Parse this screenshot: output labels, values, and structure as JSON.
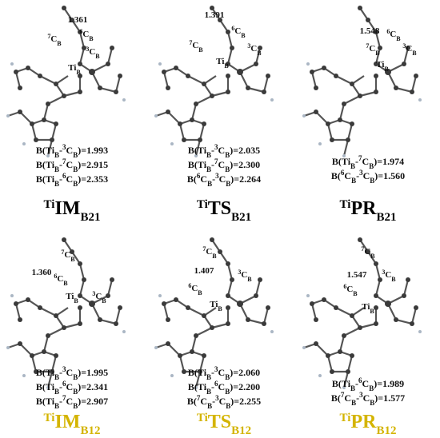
{
  "panels": [
    {
      "label": [
        [
          "Ti",
          "sup"
        ],
        [
          "IM"
        ],
        [
          "B21",
          "sub"
        ]
      ],
      "label_color": "#000000",
      "atoms": [
        [
          [
            "1.361"
          ]
        ],
        [
          [
            "7",
            "sup"
          ],
          [
            "C"
          ],
          [
            "B",
            "sub"
          ]
        ],
        [
          [
            "6",
            "sup"
          ],
          [
            "C"
          ],
          [
            "B",
            "sub"
          ]
        ],
        [
          [
            "3",
            "sup"
          ],
          [
            "C"
          ],
          [
            "B",
            "sub"
          ]
        ],
        [
          [
            "Ti"
          ],
          [
            "B",
            "sub"
          ]
        ]
      ],
      "bonds": [
        [
          [
            "B(Ti"
          ],
          [
            "B",
            "sub"
          ],
          [
            "-"
          ],
          [
            "3",
            "sup"
          ],
          [
            "C"
          ],
          [
            "B",
            "sub"
          ],
          [
            ")=1.993"
          ]
        ],
        [
          [
            "B(Ti"
          ],
          [
            "B",
            "sub"
          ],
          [
            "-"
          ],
          [
            "7",
            "sup"
          ],
          [
            "C"
          ],
          [
            "B",
            "sub"
          ],
          [
            ")=2.915"
          ]
        ],
        [
          [
            "B(Ti"
          ],
          [
            "B",
            "sub"
          ],
          [
            "-"
          ],
          [
            "6",
            "sup"
          ],
          [
            "C"
          ],
          [
            "B",
            "sub"
          ],
          [
            ")=2.353"
          ]
        ]
      ]
    },
    {
      "label": [
        [
          "Ti",
          "sup"
        ],
        [
          "TS"
        ],
        [
          "B21",
          "sub"
        ]
      ],
      "label_color": "#000000",
      "atoms": [
        [
          [
            "1.391"
          ]
        ],
        [
          [
            "6",
            "sup"
          ],
          [
            "C"
          ],
          [
            "B",
            "sub"
          ]
        ],
        [
          [
            "7",
            "sup"
          ],
          [
            "C"
          ],
          [
            "B",
            "sub"
          ]
        ],
        [
          [
            "3",
            "sup"
          ],
          [
            "C"
          ],
          [
            "B",
            "sub"
          ]
        ],
        [
          [
            "Ti"
          ],
          [
            "B",
            "sub"
          ]
        ]
      ],
      "bonds": [
        [
          [
            "B(Ti"
          ],
          [
            "B",
            "sub"
          ],
          [
            "-"
          ],
          [
            "3",
            "sup"
          ],
          [
            "C"
          ],
          [
            "B",
            "sub"
          ],
          [
            ")=2.035"
          ]
        ],
        [
          [
            "B(Ti"
          ],
          [
            "B",
            "sub"
          ],
          [
            "-"
          ],
          [
            "7",
            "sup"
          ],
          [
            "C"
          ],
          [
            "B",
            "sub"
          ],
          [
            ")=2.300"
          ]
        ],
        [
          [
            "B("
          ],
          [
            "6",
            "sup"
          ],
          [
            "C"
          ],
          [
            "B",
            "sub"
          ],
          [
            "-"
          ],
          [
            "3",
            "sup"
          ],
          [
            "C"
          ],
          [
            "B",
            "sub"
          ],
          [
            ")=2.264"
          ]
        ]
      ]
    },
    {
      "label": [
        [
          "Ti",
          "sup"
        ],
        [
          "PR"
        ],
        [
          "B21",
          "sub"
        ]
      ],
      "label_color": "#000000",
      "atoms": [
        [
          [
            "1.548"
          ]
        ],
        [
          [
            "6",
            "sup"
          ],
          [
            "C"
          ],
          [
            "B",
            "sub"
          ]
        ],
        [
          [
            "3",
            "sup"
          ],
          [
            "C"
          ],
          [
            "B",
            "sub"
          ]
        ],
        [
          [
            "7",
            "sup"
          ],
          [
            "C"
          ],
          [
            "B",
            "sub"
          ]
        ],
        [
          [
            "Ti"
          ],
          [
            "B",
            "sub"
          ]
        ]
      ],
      "bonds": [
        [
          [
            "B(Ti"
          ],
          [
            "B",
            "sub"
          ],
          [
            "-"
          ],
          [
            "7",
            "sup"
          ],
          [
            "C"
          ],
          [
            "B",
            "sub"
          ],
          [
            ")=1.974"
          ]
        ],
        [
          [
            "B("
          ],
          [
            "6",
            "sup"
          ],
          [
            "C"
          ],
          [
            "B",
            "sub"
          ],
          [
            "-"
          ],
          [
            "3",
            "sup"
          ],
          [
            "C"
          ],
          [
            "B",
            "sub"
          ],
          [
            ")=1.560"
          ]
        ]
      ]
    },
    {
      "label": [
        [
          "Ti",
          "sup"
        ],
        [
          "IM"
        ],
        [
          "B12",
          "sub"
        ]
      ],
      "label_color": "#d4b400",
      "atoms": [
        [
          [
            "1.360"
          ]
        ],
        [
          [
            "7",
            "sup"
          ],
          [
            "C"
          ],
          [
            "B",
            "sub"
          ]
        ],
        [
          [
            "6",
            "sup"
          ],
          [
            "C"
          ],
          [
            "B",
            "sub"
          ]
        ],
        [
          [
            "3",
            "sup"
          ],
          [
            "C"
          ],
          [
            "B",
            "sub"
          ]
        ],
        [
          [
            "Ti"
          ],
          [
            "B",
            "sub"
          ]
        ]
      ],
      "bonds": [
        [
          [
            "B(Ti"
          ],
          [
            "B",
            "sub"
          ],
          [
            "-"
          ],
          [
            "3",
            "sup"
          ],
          [
            "C"
          ],
          [
            "B",
            "sub"
          ],
          [
            ")=1.995"
          ]
        ],
        [
          [
            "B(Ti"
          ],
          [
            "B",
            "sub"
          ],
          [
            "-"
          ],
          [
            "6",
            "sup"
          ],
          [
            "C"
          ],
          [
            "B",
            "sub"
          ],
          [
            ")=2.341"
          ]
        ],
        [
          [
            "B(Ti"
          ],
          [
            "B",
            "sub"
          ],
          [
            "-"
          ],
          [
            "7",
            "sup"
          ],
          [
            "C"
          ],
          [
            "B",
            "sub"
          ],
          [
            ")=2.907"
          ]
        ]
      ]
    },
    {
      "label": [
        [
          "Ti",
          "sup"
        ],
        [
          "TS"
        ],
        [
          "B12",
          "sub"
        ]
      ],
      "label_color": "#d4b400",
      "atoms": [
        [
          [
            "7",
            "sup"
          ],
          [
            "C"
          ],
          [
            "B",
            "sub"
          ]
        ],
        [
          [
            "1.407"
          ]
        ],
        [
          [
            "3",
            "sup"
          ],
          [
            "C"
          ],
          [
            "B",
            "sub"
          ]
        ],
        [
          [
            "6",
            "sup"
          ],
          [
            "C"
          ],
          [
            "B",
            "sub"
          ]
        ],
        [
          [
            "Ti"
          ],
          [
            "B",
            "sub"
          ]
        ]
      ],
      "bonds": [
        [
          [
            "B(Ti"
          ],
          [
            "B",
            "sub"
          ],
          [
            "-"
          ],
          [
            "3",
            "sup"
          ],
          [
            "C"
          ],
          [
            "B",
            "sub"
          ],
          [
            ")=2.060"
          ]
        ],
        [
          [
            "B(Ti"
          ],
          [
            "B",
            "sub"
          ],
          [
            "-"
          ],
          [
            "6",
            "sup"
          ],
          [
            "C"
          ],
          [
            "B",
            "sub"
          ],
          [
            ")=2.200"
          ]
        ],
        [
          [
            "B("
          ],
          [
            "7",
            "sup"
          ],
          [
            "C"
          ],
          [
            "B",
            "sub"
          ],
          [
            "-"
          ],
          [
            "3",
            "sup"
          ],
          [
            "C"
          ],
          [
            "B",
            "sub"
          ],
          [
            ")=2.255"
          ]
        ]
      ]
    },
    {
      "label": [
        [
          "Ti",
          "sup"
        ],
        [
          "PR"
        ],
        [
          "B12",
          "sub"
        ]
      ],
      "label_color": "#d4b400",
      "atoms": [
        [
          [
            "7",
            "sup"
          ],
          [
            "C"
          ],
          [
            "B",
            "sub"
          ]
        ],
        [
          [
            "1.547"
          ]
        ],
        [
          [
            "3",
            "sup"
          ],
          [
            "C"
          ],
          [
            "B",
            "sub"
          ]
        ],
        [
          [
            "6",
            "sup"
          ],
          [
            "C"
          ],
          [
            "B",
            "sub"
          ]
        ],
        [
          [
            "Ti"
          ],
          [
            "B",
            "sub"
          ]
        ]
      ],
      "bonds": [
        [
          [
            "B(Ti"
          ],
          [
            "B",
            "sub"
          ],
          [
            "-"
          ],
          [
            "6",
            "sup"
          ],
          [
            "C"
          ],
          [
            "B",
            "sub"
          ],
          [
            ")=1.989"
          ]
        ],
        [
          [
            "B("
          ],
          [
            "7",
            "sup"
          ],
          [
            "C"
          ],
          [
            "B",
            "sub"
          ],
          [
            "-"
          ],
          [
            "3",
            "sup"
          ],
          [
            "C"
          ],
          [
            "B",
            "sub"
          ],
          [
            ")=1.577"
          ]
        ]
      ]
    }
  ]
}
